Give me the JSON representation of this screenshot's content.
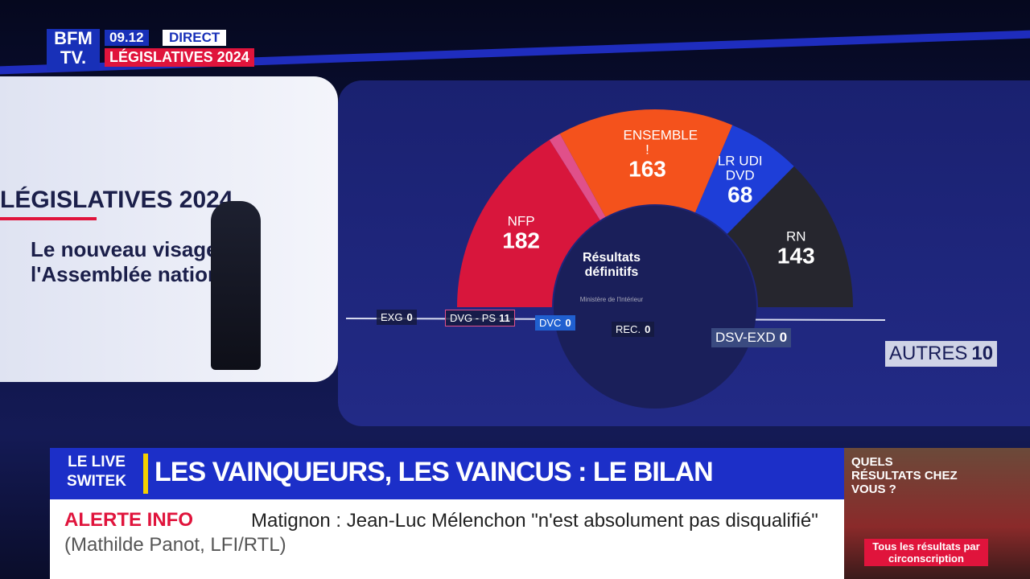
{
  "header": {
    "logo_top": "BFM",
    "logo_bottom": "TV.",
    "time": "09.12",
    "live": "DIRECT",
    "program": "LÉGISLATIVES 2024"
  },
  "screen": {
    "title": "LÉGISLATIVES 2024",
    "subtitle": "Le nouveau visage de l'Assemblée nationale"
  },
  "chart_data": {
    "type": "hemicycle",
    "center_title": "Résultats définitifs",
    "source": "Ministère de l'Intérieur",
    "categories": [
      "NFP",
      "DVG - PS",
      "ENSEMBLE !",
      "LR UDI DVD",
      "RN"
    ],
    "values": [
      182,
      11,
      163,
      68,
      143
    ],
    "colors": [
      "#d8163c",
      "#e0508a",
      "#f4521c",
      "#1e3ed8",
      "#26262e"
    ],
    "labeled": [
      true,
      false,
      true,
      true,
      true
    ],
    "others": [
      {
        "name": "EXG",
        "value": 0
      },
      {
        "name": "DVC",
        "value": 0
      },
      {
        "name": "REC.",
        "value": 0
      },
      {
        "name": "DSV-EXD",
        "value": 0
      },
      {
        "name": "AUTRES",
        "value": 10
      }
    ]
  },
  "ticker": {
    "show": "LE LIVE SWITEK",
    "headline": "LES VAINQUEURS, LES VAINCUS : LE BILAN",
    "alert": "ALERTE INFO",
    "alert_text": "Matignon : Jean-Luc Mélenchon \"n'est absolument pas disqualifié\"",
    "alert_source": "(Mathilde Panot, LFI/RTL)"
  },
  "promo": {
    "question": "QUELS RÉSULTATS CHEZ VOUS ?",
    "cta": "Tous les résultats par circonscription"
  }
}
